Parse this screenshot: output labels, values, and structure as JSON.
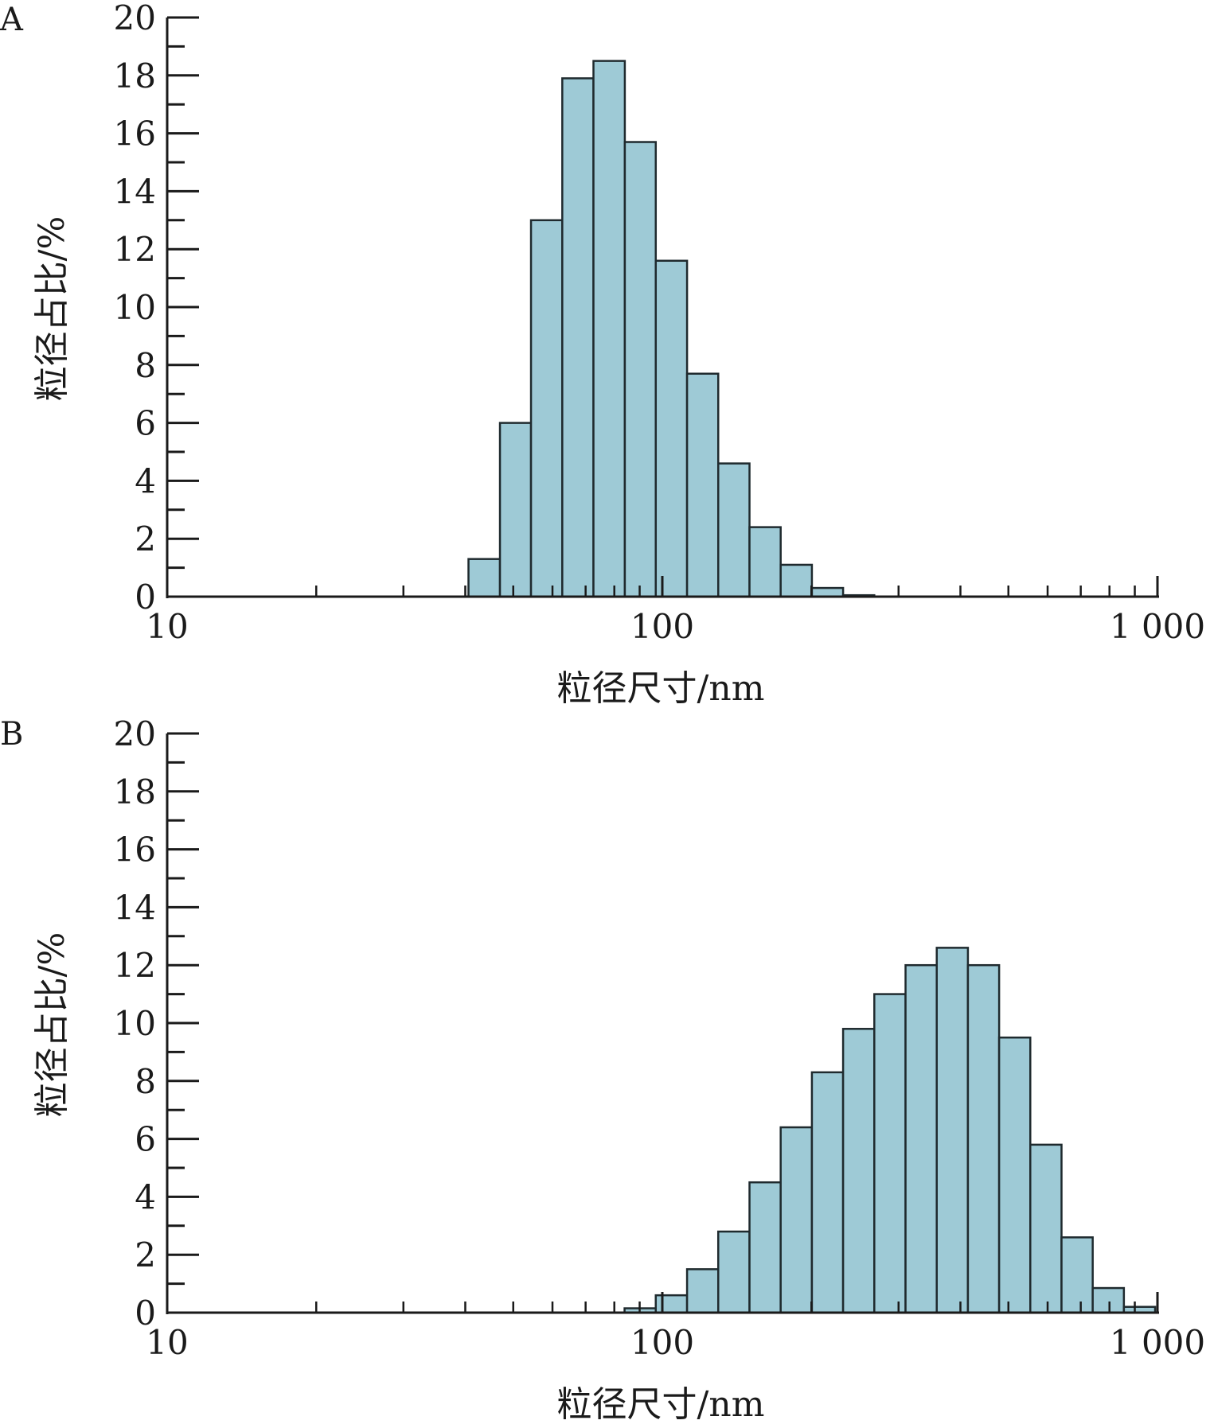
{
  "chart_data": [
    {
      "panel_label": "A",
      "type": "bar",
      "x_scale": "log",
      "xlabel": "粒径尺寸/nm",
      "ylabel": "粒径占比/%",
      "xlim": [
        10,
        1000
      ],
      "ylim": [
        0,
        20
      ],
      "x_tick_labels": [
        "10",
        "100",
        "1 000"
      ],
      "y_tick_labels": [
        "0",
        "2",
        "4",
        "6",
        "8",
        "10",
        "12",
        "14",
        "16",
        "18",
        "20"
      ],
      "bar_color": "#9ecad6",
      "bins": [
        {
          "x0": 40.6,
          "x1": 47.0,
          "value": 1.3
        },
        {
          "x0": 47.0,
          "x1": 54.3,
          "value": 6.0
        },
        {
          "x0": 54.3,
          "x1": 62.8,
          "value": 13.0
        },
        {
          "x0": 62.8,
          "x1": 72.6,
          "value": 17.9
        },
        {
          "x0": 72.6,
          "x1": 84.0,
          "value": 18.5
        },
        {
          "x0": 84.0,
          "x1": 97.0,
          "value": 15.7
        },
        {
          "x0": 97.0,
          "x1": 112.2,
          "value": 11.6
        },
        {
          "x0": 112.2,
          "x1": 129.7,
          "value": 7.7
        },
        {
          "x0": 129.7,
          "x1": 150.0,
          "value": 4.6
        },
        {
          "x0": 150.0,
          "x1": 173.4,
          "value": 2.4
        },
        {
          "x0": 173.4,
          "x1": 200.5,
          "value": 1.1
        },
        {
          "x0": 200.5,
          "x1": 231.8,
          "value": 0.3
        },
        {
          "x0": 231.8,
          "x1": 268.0,
          "value": 0.05
        }
      ]
    },
    {
      "panel_label": "B",
      "type": "bar",
      "x_scale": "log",
      "xlabel": "粒径尺寸/nm",
      "ylabel": "粒径占比/%",
      "xlim": [
        10,
        1000
      ],
      "ylim": [
        0,
        20
      ],
      "x_tick_labels": [
        "10",
        "100",
        "1 000"
      ],
      "y_tick_labels": [
        "0",
        "2",
        "4",
        "6",
        "8",
        "10",
        "12",
        "14",
        "16",
        "18",
        "20"
      ],
      "bar_color": "#9ecad6",
      "bins": [
        {
          "x0": 83.9,
          "x1": 97.0,
          "value": 0.15
        },
        {
          "x0": 97.0,
          "x1": 112.2,
          "value": 0.6
        },
        {
          "x0": 112.2,
          "x1": 129.7,
          "value": 1.5
        },
        {
          "x0": 129.7,
          "x1": 150.0,
          "value": 2.8
        },
        {
          "x0": 150.0,
          "x1": 173.4,
          "value": 4.5
        },
        {
          "x0": 173.4,
          "x1": 200.5,
          "value": 6.4
        },
        {
          "x0": 200.5,
          "x1": 231.8,
          "value": 8.3
        },
        {
          "x0": 231.8,
          "x1": 268.0,
          "value": 9.8
        },
        {
          "x0": 268.0,
          "x1": 309.9,
          "value": 11.0
        },
        {
          "x0": 309.9,
          "x1": 358.3,
          "value": 12.0
        },
        {
          "x0": 358.3,
          "x1": 414.2,
          "value": 12.6
        },
        {
          "x0": 414.2,
          "x1": 478.9,
          "value": 12.0
        },
        {
          "x0": 478.9,
          "x1": 553.6,
          "value": 9.5
        },
        {
          "x0": 553.6,
          "x1": 640.1,
          "value": 5.8
        },
        {
          "x0": 640.1,
          "x1": 740.0,
          "value": 2.6
        },
        {
          "x0": 740.0,
          "x1": 855.5,
          "value": 0.85
        },
        {
          "x0": 855.5,
          "x1": 989.1,
          "value": 0.2
        }
      ]
    }
  ]
}
